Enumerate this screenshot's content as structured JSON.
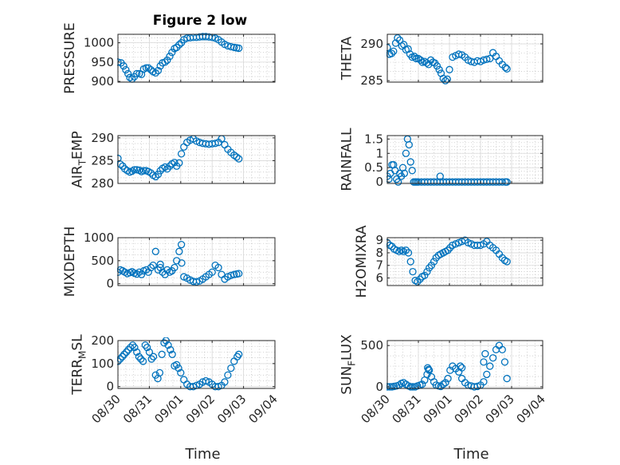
{
  "figure": {
    "title": "Figure 2 low",
    "marker_color": "#0072bd",
    "grid": true
  },
  "chart_data": [
    {
      "type": "scatter",
      "name_label": "PRESSURE",
      "subscript": "",
      "suffix": "",
      "xlim": [
        0,
        5
      ],
      "ylim": [
        898,
        1022
      ],
      "yticks": [
        900,
        950,
        1000
      ],
      "ytick_labels": [
        "900",
        "950",
        "1000"
      ],
      "x": [
        0.0,
        0.1,
        0.18,
        0.25,
        0.32,
        0.38,
        0.45,
        0.52,
        0.6,
        0.68,
        0.75,
        0.82,
        0.9,
        0.97,
        1.05,
        1.12,
        1.2,
        1.28,
        1.35,
        1.42,
        1.5,
        1.57,
        1.65,
        1.72,
        1.8,
        1.87,
        1.95,
        2.02,
        2.1,
        2.2,
        2.3,
        2.4,
        2.5,
        2.6,
        2.7,
        2.8,
        2.9,
        3.0,
        3.1,
        3.2,
        3.3,
        3.4,
        3.5,
        3.6,
        3.7,
        3.78,
        3.85
      ],
      "y": [
        950,
        948,
        940,
        930,
        920,
        910,
        906,
        912,
        920,
        920,
        918,
        932,
        935,
        935,
        930,
        925,
        922,
        928,
        940,
        948,
        950,
        955,
        965,
        975,
        985,
        988,
        995,
        1000,
        1008,
        1012,
        1013,
        1014,
        1014,
        1015,
        1016,
        1016,
        1015,
        1014,
        1012,
        1008,
        1002,
        996,
        992,
        990,
        988,
        987,
        986
      ]
    },
    {
      "type": "scatter",
      "name_label": "THETA",
      "subscript": "",
      "suffix": "",
      "xlim": [
        0,
        5
      ],
      "ylim": [
        284.8,
        291.3
      ],
      "yticks": [
        285,
        290
      ],
      "ytick_labels": [
        "285",
        "290"
      ],
      "x": [
        0.0,
        0.07,
        0.14,
        0.2,
        0.27,
        0.33,
        0.4,
        0.47,
        0.53,
        0.6,
        0.67,
        0.73,
        0.8,
        0.87,
        0.93,
        1.0,
        1.07,
        1.13,
        1.2,
        1.27,
        1.33,
        1.4,
        1.47,
        1.53,
        1.6,
        1.67,
        1.73,
        1.8,
        1.87,
        1.93,
        2.0,
        2.1,
        2.2,
        2.3,
        2.4,
        2.5,
        2.6,
        2.7,
        2.8,
        2.9,
        3.0,
        3.1,
        3.2,
        3.3,
        3.4,
        3.5,
        3.6,
        3.7,
        3.8,
        3.85
      ],
      "y": [
        289.5,
        288.6,
        288.7,
        289.0,
        290.1,
        290.8,
        290.5,
        289.7,
        289.9,
        289.2,
        289.3,
        288.6,
        288.2,
        288.3,
        288.0,
        288.0,
        287.8,
        287.5,
        287.6,
        287.4,
        287.2,
        287.8,
        287.5,
        287.4,
        287.0,
        286.5,
        286.0,
        285.3,
        285.0,
        285.2,
        286.5,
        288.2,
        288.4,
        288.6,
        288.5,
        288.2,
        287.8,
        287.6,
        287.5,
        287.7,
        287.6,
        287.8,
        287.9,
        288.0,
        288.8,
        288.3,
        287.7,
        287.2,
        286.8,
        286.6
      ]
    },
    {
      "type": "scatter",
      "name_label": "AIR",
      "subscript": "T",
      "suffix": "EMP",
      "xlim": [
        0,
        5
      ],
      "ylim": [
        280,
        290.5
      ],
      "yticks": [
        280,
        285,
        290
      ],
      "ytick_labels": [
        "280",
        "285",
        "290"
      ],
      "x": [
        0.0,
        0.08,
        0.15,
        0.22,
        0.3,
        0.38,
        0.45,
        0.52,
        0.6,
        0.68,
        0.75,
        0.82,
        0.9,
        0.97,
        1.05,
        1.12,
        1.2,
        1.28,
        1.35,
        1.42,
        1.5,
        1.57,
        1.65,
        1.72,
        1.8,
        1.87,
        1.95,
        2.02,
        2.1,
        2.2,
        2.3,
        2.4,
        2.5,
        2.6,
        2.7,
        2.8,
        2.9,
        3.0,
        3.1,
        3.2,
        3.3,
        3.4,
        3.5,
        3.6,
        3.7,
        3.78,
        3.85
      ],
      "y": [
        285.5,
        284.2,
        283.8,
        283.2,
        282.8,
        282.5,
        282.7,
        283.0,
        283.0,
        282.9,
        282.6,
        282.8,
        282.8,
        282.6,
        282.3,
        281.8,
        281.5,
        282.0,
        282.8,
        283.3,
        283.6,
        283.2,
        283.8,
        284.3,
        284.6,
        283.8,
        284.5,
        286.5,
        288.0,
        289.0,
        289.5,
        289.8,
        289.3,
        289.0,
        288.8,
        288.7,
        288.6,
        288.7,
        288.8,
        289.0,
        289.8,
        288.5,
        287.5,
        286.8,
        286.2,
        285.8,
        285.4
      ]
    },
    {
      "type": "scatter",
      "name_label": "RAINFALL",
      "subscript": "",
      "suffix": "",
      "xlim": [
        0,
        5
      ],
      "ylim": [
        -0.05,
        1.62
      ],
      "yticks": [
        0,
        0.5,
        1,
        1.5
      ],
      "ytick_labels": [
        "0",
        "0.5",
        "1",
        "1.5"
      ],
      "x": [
        0.0,
        0.05,
        0.1,
        0.15,
        0.2,
        0.25,
        0.3,
        0.35,
        0.4,
        0.45,
        0.5,
        0.55,
        0.6,
        0.65,
        0.7,
        0.75,
        0.8,
        0.85,
        0.9,
        0.95,
        1.0,
        1.1,
        1.2,
        1.3,
        1.4,
        1.5,
        1.6,
        1.7,
        1.8,
        1.9,
        2.0,
        2.1,
        2.2,
        2.3,
        2.4,
        2.5,
        2.6,
        2.7,
        2.8,
        2.9,
        3.0,
        3.1,
        3.2,
        3.3,
        3.4,
        3.5,
        3.6,
        3.7,
        3.8,
        3.85,
        1.7
      ],
      "y": [
        0.2,
        0.1,
        0.3,
        0.6,
        0.6,
        0.4,
        0.1,
        0.0,
        0.3,
        0.2,
        0.5,
        0.3,
        1.0,
        1.5,
        1.3,
        0.7,
        0.4,
        0.0,
        0.0,
        0.0,
        0.0,
        0.0,
        0.0,
        0.0,
        0.0,
        0.0,
        0.0,
        0.0,
        0.0,
        0.0,
        0.0,
        0.0,
        0.0,
        0.0,
        0.0,
        0.0,
        0.0,
        0.0,
        0.0,
        0.0,
        0.0,
        0.0,
        0.0,
        0.0,
        0.0,
        0.0,
        0.0,
        0.0,
        0.0,
        0.0,
        0.2
      ]
    },
    {
      "type": "scatter",
      "name_label": "MIXDEPTH",
      "subscript": "",
      "suffix": "",
      "xlim": [
        0,
        5
      ],
      "ylim": [
        -40,
        1000
      ],
      "yticks": [
        0,
        500,
        1000
      ],
      "ytick_labels": [
        "0",
        "500",
        "1000"
      ],
      "x": [
        0.0,
        0.08,
        0.15,
        0.22,
        0.3,
        0.38,
        0.45,
        0.52,
        0.6,
        0.68,
        0.75,
        0.82,
        0.9,
        0.97,
        1.05,
        1.12,
        1.2,
        1.28,
        1.35,
        1.42,
        1.5,
        1.57,
        1.65,
        1.72,
        1.8,
        1.87,
        1.95,
        2.02,
        2.1,
        2.2,
        2.3,
        2.4,
        2.5,
        2.6,
        2.7,
        2.8,
        2.9,
        3.0,
        3.1,
        3.2,
        3.3,
        3.4,
        3.5,
        3.6,
        3.7,
        3.78,
        3.85,
        1.35,
        2.03
      ],
      "y": [
        250,
        300,
        280,
        250,
        220,
        240,
        260,
        230,
        210,
        250,
        200,
        280,
        300,
        250,
        350,
        400,
        700,
        300,
        350,
        250,
        200,
        300,
        250,
        280,
        350,
        500,
        700,
        850,
        150,
        120,
        80,
        50,
        40,
        60,
        100,
        150,
        200,
        250,
        400,
        350,
        200,
        100,
        150,
        180,
        200,
        210,
        220,
        420,
        450
      ]
    },
    {
      "type": "scatter",
      "name_label": "H2OMIXRA",
      "subscript": "",
      "suffix": "",
      "xlim": [
        0,
        5
      ],
      "ylim": [
        5.4,
        9.2
      ],
      "yticks": [
        6,
        7,
        8,
        9
      ],
      "ytick_labels": [
        "6",
        "7",
        "8",
        "9"
      ],
      "x": [
        0.0,
        0.08,
        0.15,
        0.22,
        0.3,
        0.38,
        0.45,
        0.52,
        0.6,
        0.68,
        0.75,
        0.82,
        0.9,
        0.97,
        1.05,
        1.12,
        1.2,
        1.28,
        1.35,
        1.42,
        1.5,
        1.57,
        1.65,
        1.72,
        1.8,
        1.87,
        1.95,
        2.02,
        2.1,
        2.2,
        2.3,
        2.4,
        2.5,
        2.6,
        2.7,
        2.8,
        2.9,
        3.0,
        3.1,
        3.2,
        3.3,
        3.4,
        3.5,
        3.6,
        3.7,
        3.78,
        3.85
      ],
      "y": [
        8.8,
        8.6,
        8.5,
        8.3,
        8.2,
        8.1,
        8.2,
        8.1,
        8.2,
        8.0,
        7.3,
        6.5,
        5.8,
        5.7,
        5.9,
        6.1,
        6.2,
        6.5,
        6.8,
        7.0,
        7.3,
        7.6,
        7.8,
        7.9,
        8.0,
        8.1,
        8.2,
        8.4,
        8.6,
        8.7,
        8.8,
        8.9,
        9.0,
        8.8,
        8.7,
        8.6,
        8.6,
        8.6,
        8.7,
        8.9,
        8.6,
        8.4,
        8.2,
        7.9,
        7.6,
        7.4,
        7.3
      ]
    },
    {
      "type": "scatter",
      "name_label": "TERR",
      "subscript": "M",
      "suffix": "SL",
      "xlim": [
        0,
        5
      ],
      "ylim": [
        -8,
        200
      ],
      "yticks": [
        0,
        100,
        200
      ],
      "ytick_labels": [
        "0",
        "100",
        "200"
      ],
      "x": [
        0.0,
        0.07,
        0.14,
        0.2,
        0.27,
        0.33,
        0.4,
        0.47,
        0.53,
        0.6,
        0.67,
        0.73,
        0.8,
        0.87,
        0.93,
        1.0,
        1.07,
        1.13,
        1.2,
        1.27,
        1.33,
        1.4,
        1.47,
        1.53,
        1.6,
        1.67,
        1.73,
        1.8,
        1.87,
        1.93,
        2.0,
        2.1,
        2.2,
        2.3,
        2.4,
        2.5,
        2.6,
        2.7,
        2.8,
        2.9,
        3.0,
        3.1,
        3.2,
        3.3,
        3.4,
        3.5,
        3.6,
        3.7,
        3.8,
        3.85
      ],
      "y": [
        110,
        120,
        130,
        140,
        150,
        160,
        170,
        180,
        170,
        150,
        130,
        120,
        110,
        180,
        170,
        150,
        120,
        130,
        50,
        35,
        60,
        140,
        190,
        200,
        180,
        160,
        140,
        90,
        95,
        80,
        60,
        30,
        10,
        0,
        0,
        5,
        10,
        20,
        25,
        20,
        10,
        0,
        0,
        5,
        20,
        50,
        80,
        110,
        130,
        140
      ]
    },
    {
      "type": "scatter",
      "name_label": "SUN",
      "subscript": "F",
      "suffix": "LUX",
      "xlim": [
        0,
        5
      ],
      "ylim": [
        -20,
        560
      ],
      "yticks": [
        0,
        500
      ],
      "ytick_labels": [
        "0",
        "500"
      ],
      "x": [
        0.0,
        0.08,
        0.15,
        0.22,
        0.3,
        0.38,
        0.45,
        0.52,
        0.6,
        0.68,
        0.75,
        0.82,
        0.9,
        0.97,
        1.05,
        1.12,
        1.2,
        1.28,
        1.35,
        1.42,
        1.5,
        1.57,
        1.65,
        1.72,
        1.8,
        1.87,
        1.95,
        2.02,
        2.1,
        2.2,
        2.3,
        2.4,
        2.5,
        2.6,
        2.7,
        2.8,
        2.9,
        3.0,
        3.1,
        3.2,
        3.3,
        3.4,
        3.5,
        3.6,
        3.7,
        3.78,
        3.85,
        1.3,
        1.33,
        2.35,
        2.4,
        3.1,
        3.15
      ],
      "y": [
        0,
        0,
        0,
        5,
        10,
        20,
        40,
        50,
        30,
        10,
        0,
        0,
        0,
        10,
        20,
        30,
        80,
        150,
        200,
        120,
        60,
        20,
        10,
        5,
        30,
        50,
        100,
        200,
        250,
        220,
        180,
        100,
        50,
        20,
        10,
        0,
        5,
        20,
        60,
        150,
        250,
        350,
        450,
        500,
        450,
        300,
        100,
        230,
        210,
        250,
        230,
        300,
        400
      ]
    }
  ],
  "x_axis": {
    "label": "Time",
    "ticks": [
      0,
      1,
      2,
      3,
      4,
      5
    ],
    "tick_labels": [
      "08/30",
      "08/31",
      "09/01",
      "09/02",
      "09/03",
      "09/04"
    ]
  }
}
